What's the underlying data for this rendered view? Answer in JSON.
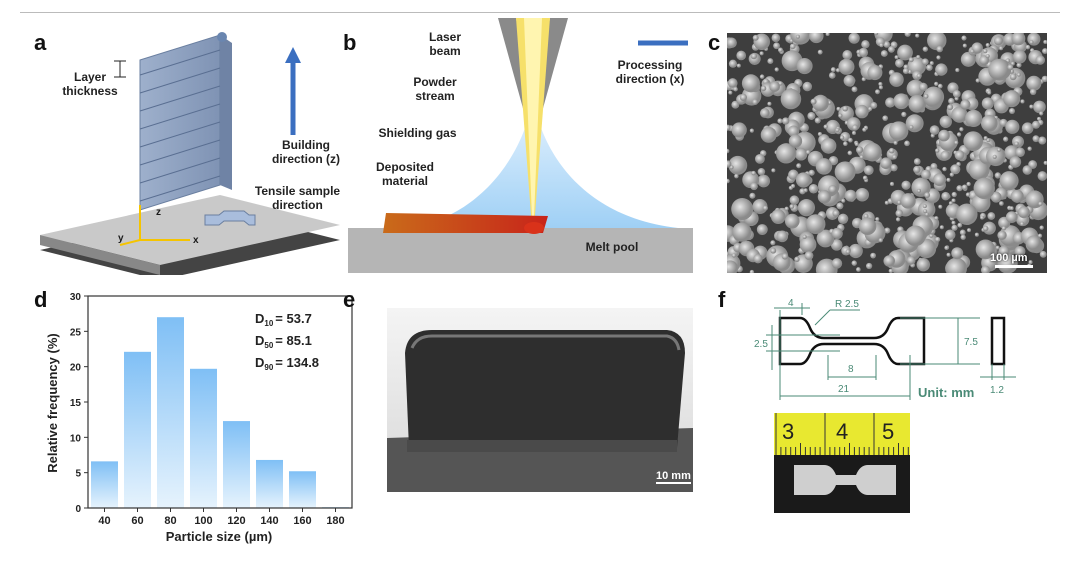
{
  "panels": {
    "a": "a",
    "b": "b",
    "c": "c",
    "d": "d",
    "e": "e",
    "f": "f"
  },
  "a": {
    "layer": "Layer thickness",
    "building": "Building direction (z)",
    "tensile": "Tensile sample direction",
    "axes": {
      "x": "x",
      "y": "y",
      "z": "z"
    }
  },
  "b": {
    "laser": "Laser beam",
    "powder": "Powder stream",
    "shield": "Shielding gas",
    "deposited": "Deposited material",
    "melt": "Melt pool",
    "processing": "Processing direction (x)"
  },
  "c": {
    "scale": "100 µm"
  },
  "e": {
    "scale": "10 mm"
  },
  "f": {
    "dims": {
      "d4": "4",
      "r": "R 2.5",
      "d25": "2.5",
      "d75": "7.5",
      "d8": "8",
      "d21": "21",
      "d12": "1.2"
    },
    "unit": "Unit: mm",
    "ruler": [
      "3",
      "4",
      "5"
    ]
  },
  "chart_data": {
    "type": "bar",
    "xlabel": "Particle size (µm)",
    "ylabel": "Relative frequency (%)",
    "categories": [
      "40",
      "60",
      "80",
      "100",
      "120",
      "140",
      "160",
      "180"
    ],
    "values": [
      6.6,
      22.1,
      27.0,
      19.7,
      12.3,
      6.8,
      5.2,
      0.1
    ],
    "ylim": [
      0,
      30
    ],
    "yticks": [
      "0",
      "5",
      "10",
      "15",
      "20",
      "25",
      "30"
    ],
    "annotations": [
      {
        "label": "D",
        "sub": "10",
        "value": "= 53.7"
      },
      {
        "label": "D",
        "sub": "50",
        "value": "= 85.1"
      },
      {
        "label": "D",
        "sub": "90",
        "value": "= 134.8"
      }
    ],
    "bar_color": "#7fbff5"
  }
}
